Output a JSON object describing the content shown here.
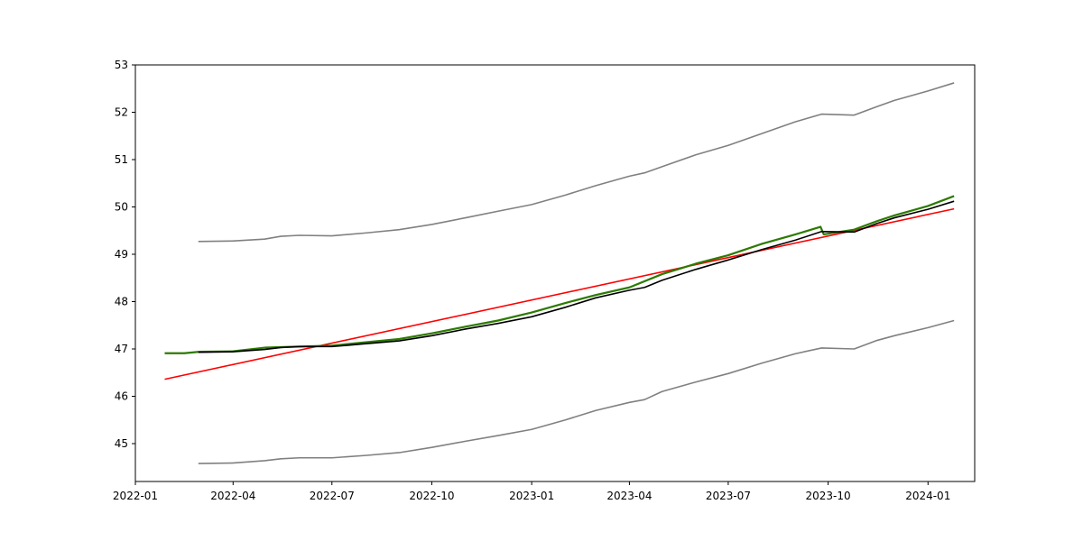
{
  "chart_data": {
    "type": "line",
    "title": "",
    "xlabel": "",
    "ylabel": "",
    "xlim": [
      "2022-01-01",
      "2024-02-13"
    ],
    "ylim": [
      44.2,
      53.0
    ],
    "grid": false,
    "legend": "none",
    "x_ticks": [
      "2022-01",
      "2022-04",
      "2022-07",
      "2022-10",
      "2023-01",
      "2023-04",
      "2023-07",
      "2023-10",
      "2024-01"
    ],
    "y_ticks": [
      45,
      46,
      47,
      48,
      49,
      50,
      51,
      52,
      53
    ],
    "series": [
      {
        "name": "upper_band",
        "color": "#808080",
        "points": [
          [
            "2022-02-28",
            49.27
          ],
          [
            "2022-03-31",
            49.28
          ],
          [
            "2022-04-30",
            49.32
          ],
          [
            "2022-05-15",
            49.38
          ],
          [
            "2022-06-01",
            49.4
          ],
          [
            "2022-07-01",
            49.39
          ],
          [
            "2022-08-01",
            49.45
          ],
          [
            "2022-09-01",
            49.52
          ],
          [
            "2022-10-01",
            49.63
          ],
          [
            "2022-11-01",
            49.77
          ],
          [
            "2022-12-01",
            49.91
          ],
          [
            "2023-01-01",
            50.05
          ],
          [
            "2023-02-01",
            50.25
          ],
          [
            "2023-03-01",
            50.45
          ],
          [
            "2023-04-01",
            50.65
          ],
          [
            "2023-04-15",
            50.72
          ],
          [
            "2023-05-01",
            50.85
          ],
          [
            "2023-06-01",
            51.1
          ],
          [
            "2023-07-01",
            51.3
          ],
          [
            "2023-08-01",
            51.55
          ],
          [
            "2023-09-01",
            51.8
          ],
          [
            "2023-09-25",
            51.96
          ],
          [
            "2023-10-25",
            51.94
          ],
          [
            "2023-11-15",
            52.12
          ],
          [
            "2023-12-01",
            52.25
          ],
          [
            "2024-01-01",
            52.45
          ],
          [
            "2024-01-25",
            52.62
          ]
        ]
      },
      {
        "name": "lower_band",
        "color": "#808080",
        "points": [
          [
            "2022-02-28",
            44.58
          ],
          [
            "2022-03-31",
            44.59
          ],
          [
            "2022-04-30",
            44.64
          ],
          [
            "2022-05-15",
            44.68
          ],
          [
            "2022-06-01",
            44.7
          ],
          [
            "2022-07-01",
            44.7
          ],
          [
            "2022-08-01",
            44.75
          ],
          [
            "2022-09-01",
            44.81
          ],
          [
            "2022-10-01",
            44.92
          ],
          [
            "2022-11-01",
            45.05
          ],
          [
            "2022-12-01",
            45.17
          ],
          [
            "2023-01-01",
            45.3
          ],
          [
            "2023-02-01",
            45.5
          ],
          [
            "2023-03-01",
            45.7
          ],
          [
            "2023-04-01",
            45.87
          ],
          [
            "2023-04-15",
            45.93
          ],
          [
            "2023-05-01",
            46.1
          ],
          [
            "2023-06-01",
            46.3
          ],
          [
            "2023-07-01",
            46.48
          ],
          [
            "2023-08-01",
            46.7
          ],
          [
            "2023-09-01",
            46.9
          ],
          [
            "2023-09-25",
            47.02
          ],
          [
            "2023-10-25",
            47.0
          ],
          [
            "2023-11-15",
            47.18
          ],
          [
            "2023-12-01",
            47.28
          ],
          [
            "2024-01-01",
            47.45
          ],
          [
            "2024-01-25",
            47.6
          ]
        ]
      },
      {
        "name": "trend_line",
        "color": "#ff0000",
        "points": [
          [
            "2022-01-28",
            46.36
          ],
          [
            "2024-01-25",
            49.96
          ]
        ]
      },
      {
        "name": "green_series",
        "color": "#2d7a00",
        "points": [
          [
            "2022-01-28",
            46.91
          ],
          [
            "2022-02-15",
            46.91
          ],
          [
            "2022-03-01",
            46.94
          ],
          [
            "2022-04-01",
            46.95
          ],
          [
            "2022-05-01",
            47.03
          ],
          [
            "2022-06-01",
            47.05
          ],
          [
            "2022-07-01",
            47.07
          ],
          [
            "2022-08-01",
            47.14
          ],
          [
            "2022-09-01",
            47.21
          ],
          [
            "2022-10-01",
            47.33
          ],
          [
            "2022-11-01",
            47.47
          ],
          [
            "2022-12-01",
            47.6
          ],
          [
            "2023-01-01",
            47.77
          ],
          [
            "2023-02-01",
            47.97
          ],
          [
            "2023-03-01",
            48.14
          ],
          [
            "2023-04-01",
            48.3
          ],
          [
            "2023-05-01",
            48.58
          ],
          [
            "2023-06-01",
            48.8
          ],
          [
            "2023-07-01",
            48.98
          ],
          [
            "2023-08-01",
            49.22
          ],
          [
            "2023-09-01",
            49.42
          ],
          [
            "2023-09-24",
            49.58
          ],
          [
            "2023-09-27",
            49.42
          ],
          [
            "2023-10-25",
            49.52
          ],
          [
            "2023-11-15",
            49.7
          ],
          [
            "2023-12-01",
            49.82
          ],
          [
            "2024-01-01",
            50.02
          ],
          [
            "2024-01-25",
            50.23
          ]
        ]
      },
      {
        "name": "black_series",
        "color": "#000000",
        "points": [
          [
            "2022-02-28",
            46.93
          ],
          [
            "2022-03-31",
            46.94
          ],
          [
            "2022-04-30",
            46.99
          ],
          [
            "2022-05-15",
            47.03
          ],
          [
            "2022-06-01",
            47.05
          ],
          [
            "2022-07-01",
            47.05
          ],
          [
            "2022-08-01",
            47.11
          ],
          [
            "2022-09-01",
            47.17
          ],
          [
            "2022-10-01",
            47.28
          ],
          [
            "2022-11-01",
            47.42
          ],
          [
            "2022-12-01",
            47.54
          ],
          [
            "2023-01-01",
            47.68
          ],
          [
            "2023-02-01",
            47.88
          ],
          [
            "2023-03-01",
            48.08
          ],
          [
            "2023-04-01",
            48.24
          ],
          [
            "2023-04-15",
            48.3
          ],
          [
            "2023-05-01",
            48.45
          ],
          [
            "2023-06-01",
            48.68
          ],
          [
            "2023-07-01",
            48.88
          ],
          [
            "2023-08-01",
            49.1
          ],
          [
            "2023-09-01",
            49.3
          ],
          [
            "2023-09-25",
            49.48
          ],
          [
            "2023-10-25",
            49.47
          ],
          [
            "2023-11-15",
            49.65
          ],
          [
            "2023-12-01",
            49.77
          ],
          [
            "2024-01-01",
            49.95
          ],
          [
            "2024-01-25",
            50.12
          ]
        ]
      }
    ]
  }
}
